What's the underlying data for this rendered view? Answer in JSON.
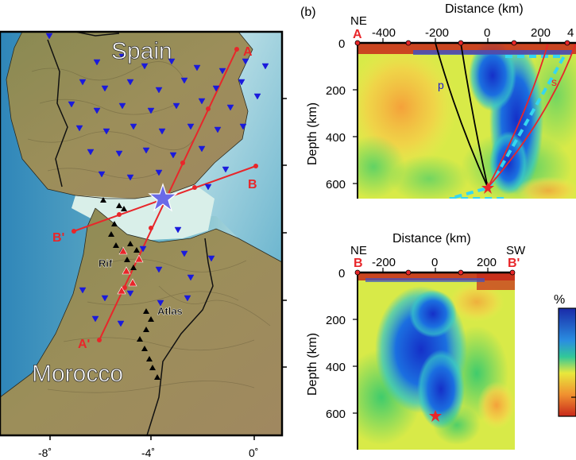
{
  "map": {
    "countries": {
      "spain": "Spain",
      "morocco": "Morocco"
    },
    "regions": {
      "rif": "Rif",
      "atlas": "Atlas"
    },
    "profile_labels": {
      "a_end": "A",
      "a_start": "A'",
      "b_end": "B",
      "b_start": "B'"
    },
    "lon_ticks": [
      "-8˚",
      "-4˚",
      "0˚"
    ],
    "colors": {
      "stations": "#1a1adc",
      "volcanic": "#000000",
      "profiles": "#e8262a",
      "event": "#6a6ae8"
    }
  },
  "panel_b": {
    "label": "(b)",
    "top": {
      "xlabel": "Distance (km)",
      "ylabel": "Depth (km)",
      "x_ticks": [
        "-400",
        "-200",
        "0",
        "200",
        "4"
      ],
      "y_ticks": [
        "0",
        "200",
        "400",
        "600"
      ],
      "left_code": "NE",
      "left_end": "A",
      "phase_p": "p",
      "phase_s": "s"
    },
    "bottom": {
      "xlabel": "Distance (km)",
      "ylabel": "Depth (km)",
      "x_ticks": [
        "-200",
        "0",
        "200"
      ],
      "y_ticks": [
        "0",
        "200",
        "400",
        "600"
      ],
      "left_code": "NE",
      "right_code": "SW",
      "left_end": "B",
      "right_end": "B'"
    },
    "colorbar": {
      "unit": "%"
    }
  },
  "chart_data": {
    "type": "heatmap",
    "panels": [
      {
        "name": "profile A-A'",
        "x_range_km": [
          -480,
          400
        ],
        "depth_range_km": [
          0,
          700
        ],
        "hypocenter": {
          "distance_km": 0,
          "depth_km": 620
        },
        "slab_outline_km": [
          [
            80,
            60
          ],
          [
            380,
            60
          ],
          [
            0,
            620
          ],
          [
            -180,
            670
          ],
          [
            190,
            670
          ]
        ]
      },
      {
        "name": "profile B-B'",
        "x_range_km": [
          -280,
          320
        ],
        "depth_range_km": [
          0,
          700
        ],
        "hypocenter": {
          "distance_km": 0,
          "depth_km": 620
        }
      }
    ]
  }
}
